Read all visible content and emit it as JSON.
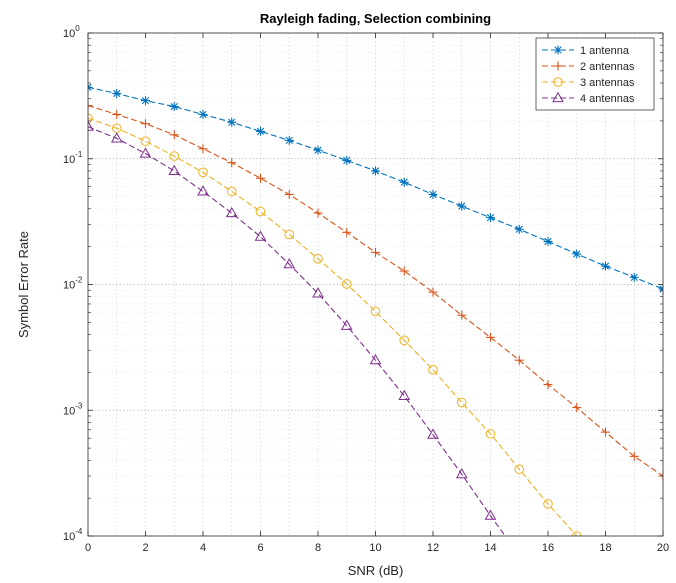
{
  "chart_data": {
    "type": "line",
    "title": "Rayleigh fading, Selection combining",
    "xlabel": "SNR (dB)",
    "ylabel": "Symbol Error Rate",
    "xlim": [
      0,
      20
    ],
    "ylim": [
      0.0001,
      1
    ],
    "yscale": "log",
    "grid": true,
    "legend_position": "top-right",
    "x_ticks": [
      "0",
      "2",
      "4",
      "6",
      "8",
      "10",
      "12",
      "14",
      "16",
      "18",
      "20"
    ],
    "y_ticks": [
      {
        "base": "10",
        "exp": "0",
        "value": 1
      },
      {
        "base": "10",
        "exp": "-1",
        "value": 0.1
      },
      {
        "base": "10",
        "exp": "-2",
        "value": 0.01
      },
      {
        "base": "10",
        "exp": "-3",
        "value": 0.001
      },
      {
        "base": "10",
        "exp": "-4",
        "value": 0.0001
      }
    ],
    "series": [
      {
        "name": "1 antenna",
        "color": "#0072BD",
        "marker": "star",
        "x": [
          0,
          1,
          2,
          3,
          4,
          5,
          6,
          7,
          8,
          9,
          10,
          11,
          12,
          13,
          14,
          15,
          16,
          17,
          18,
          19,
          20
        ],
        "y": [
          0.37,
          0.33,
          0.29,
          0.26,
          0.225,
          0.195,
          0.165,
          0.14,
          0.117,
          0.097,
          0.08,
          0.065,
          0.052,
          0.042,
          0.034,
          0.0275,
          0.022,
          0.0175,
          0.014,
          0.0114,
          0.0092
        ]
      },
      {
        "name": "2 antennas",
        "color": "#D95319",
        "marker": "plus",
        "x": [
          0,
          1,
          2,
          3,
          4,
          5,
          6,
          7,
          8,
          9,
          10,
          11,
          12,
          13,
          14,
          15,
          16,
          17,
          18,
          19,
          20
        ],
        "y": [
          0.265,
          0.225,
          0.19,
          0.155,
          0.12,
          0.093,
          0.07,
          0.052,
          0.037,
          0.026,
          0.018,
          0.0128,
          0.0087,
          0.0057,
          0.0038,
          0.0025,
          0.0016,
          0.00105,
          0.00067,
          0.00043,
          0.0003
        ]
      },
      {
        "name": "3 antennas",
        "color": "#EDB120",
        "marker": "circle",
        "x": [
          0,
          1,
          2,
          3,
          4,
          5,
          6,
          7,
          8,
          9,
          10,
          11,
          12,
          13,
          14,
          15,
          16,
          17
        ],
        "y": [
          0.21,
          0.175,
          0.138,
          0.105,
          0.078,
          0.055,
          0.038,
          0.025,
          0.016,
          0.0101,
          0.0061,
          0.0036,
          0.0021,
          0.00115,
          0.00065,
          0.00034,
          0.00018,
          0.0001
        ]
      },
      {
        "name": "4 antennas",
        "color": "#7E2F8E",
        "marker": "triangle",
        "x": [
          0,
          1,
          2,
          3,
          4,
          5,
          6,
          7,
          8,
          9,
          10,
          11,
          12,
          13,
          14,
          15
        ],
        "y": [
          0.18,
          0.145,
          0.11,
          0.08,
          0.055,
          0.037,
          0.024,
          0.0145,
          0.0085,
          0.0047,
          0.0025,
          0.0013,
          0.00064,
          0.00031,
          0.000145,
          7e-05
        ]
      }
    ]
  }
}
